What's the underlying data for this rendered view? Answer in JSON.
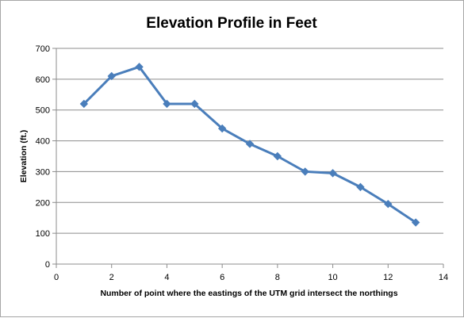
{
  "chart_data": {
    "type": "line",
    "title": "Elevation Profile in Feet",
    "xlabel": "Number of  point where the eastings of the UTM grid intersect the northings",
    "ylabel": "Elevation (ft.)",
    "xlim": [
      0,
      14
    ],
    "ylim": [
      0,
      700
    ],
    "x_ticks": [
      0,
      2,
      4,
      6,
      8,
      10,
      12,
      14
    ],
    "y_ticks": [
      0,
      100,
      200,
      300,
      400,
      500,
      600,
      700
    ],
    "grid": "horizontal major gridlines",
    "legend": "none",
    "series": [
      {
        "color": "#4a7ebb",
        "marker": "diamond",
        "x": [
          1,
          2,
          3,
          4,
          5,
          6,
          7,
          8,
          9,
          10,
          11,
          12,
          13
        ],
        "y": [
          520,
          610,
          640,
          520,
          520,
          440,
          390,
          350,
          300,
          295,
          250,
          195,
          135
        ]
      }
    ]
  }
}
